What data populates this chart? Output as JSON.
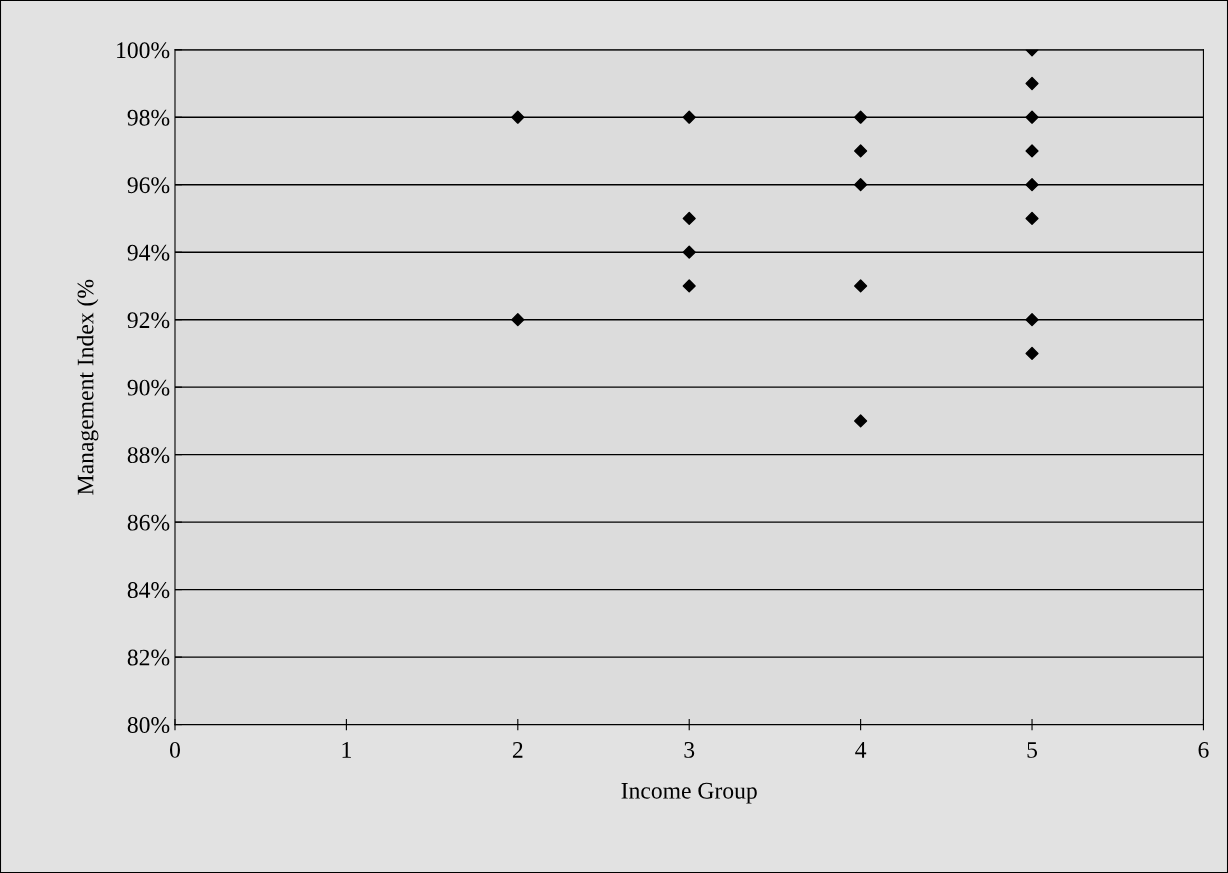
{
  "chart_data": {
    "type": "scatter",
    "xlabel": "Income Group",
    "ylabel": "Management Index (%",
    "series": [
      {
        "color": "#000000",
        "x": [
          2,
          2,
          3,
          3,
          3,
          3,
          4,
          4,
          4,
          4,
          4,
          5,
          5,
          5,
          5,
          5,
          5,
          5,
          5
        ],
        "values": [
          98,
          92,
          98,
          95,
          94,
          93,
          98,
          97,
          96,
          93,
          89,
          100,
          99,
          98,
          97,
          96,
          95,
          92,
          91
        ]
      }
    ],
    "xlim": [
      0,
      6
    ],
    "xticks": [
      0,
      1,
      2,
      3,
      4,
      5,
      6
    ],
    "ylim": [
      80,
      100
    ],
    "yticks": [
      {
        "value": 80,
        "label": "80%"
      },
      {
        "value": 82,
        "label": "82%"
      },
      {
        "value": 84,
        "label": "84%"
      },
      {
        "value": 86,
        "label": "86%"
      },
      {
        "value": 88,
        "label": "88%"
      },
      {
        "value": 90,
        "label": "90%"
      },
      {
        "value": 92,
        "label": "92%"
      },
      {
        "value": 94,
        "label": "94%"
      },
      {
        "value": 96,
        "label": "96%"
      },
      {
        "value": 98,
        "label": "98%"
      },
      {
        "value": 100,
        "label": "100%"
      }
    ],
    "grid": "y",
    "marker": "diamond"
  }
}
